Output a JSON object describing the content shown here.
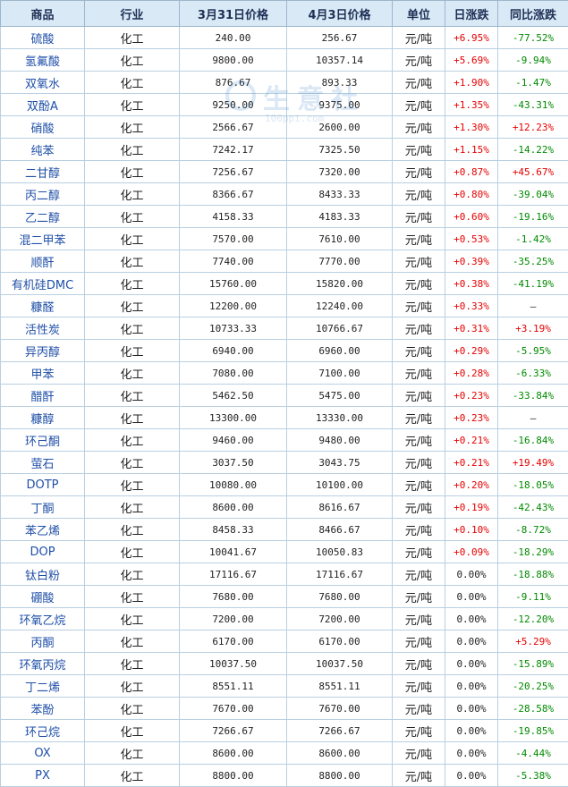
{
  "headers": [
    "商品",
    "行业",
    "3月31日价格",
    "4月3日价格",
    "单位",
    "日涨跌",
    "同比涨跌"
  ],
  "watermark": {
    "text": "生意社",
    "url": "100ppi.com"
  },
  "rows": [
    {
      "name": "硫酸",
      "industry": "化工",
      "p1": "240.00",
      "p2": "256.67",
      "unit": "元/吨",
      "day": "+6.95%",
      "day_dir": "up",
      "yoy": "-77.52%",
      "yoy_dir": "down"
    },
    {
      "name": "氢氟酸",
      "industry": "化工",
      "p1": "9800.00",
      "p2": "10357.14",
      "unit": "元/吨",
      "day": "+5.69%",
      "day_dir": "up",
      "yoy": "-9.94%",
      "yoy_dir": "down"
    },
    {
      "name": "双氧水",
      "industry": "化工",
      "p1": "876.67",
      "p2": "893.33",
      "unit": "元/吨",
      "day": "+1.90%",
      "day_dir": "up",
      "yoy": "-1.47%",
      "yoy_dir": "down"
    },
    {
      "name": "双酚A",
      "industry": "化工",
      "p1": "9250.00",
      "p2": "9375.00",
      "unit": "元/吨",
      "day": "+1.35%",
      "day_dir": "up",
      "yoy": "-43.31%",
      "yoy_dir": "down"
    },
    {
      "name": "硝酸",
      "industry": "化工",
      "p1": "2566.67",
      "p2": "2600.00",
      "unit": "元/吨",
      "day": "+1.30%",
      "day_dir": "up",
      "yoy": "+12.23%",
      "yoy_dir": "up"
    },
    {
      "name": "纯苯",
      "industry": "化工",
      "p1": "7242.17",
      "p2": "7325.50",
      "unit": "元/吨",
      "day": "+1.15%",
      "day_dir": "up",
      "yoy": "-14.22%",
      "yoy_dir": "down"
    },
    {
      "name": "二甘醇",
      "industry": "化工",
      "p1": "7256.67",
      "p2": "7320.00",
      "unit": "元/吨",
      "day": "+0.87%",
      "day_dir": "up",
      "yoy": "+45.67%",
      "yoy_dir": "up"
    },
    {
      "name": "丙二醇",
      "industry": "化工",
      "p1": "8366.67",
      "p2": "8433.33",
      "unit": "元/吨",
      "day": "+0.80%",
      "day_dir": "up",
      "yoy": "-39.04%",
      "yoy_dir": "down"
    },
    {
      "name": "乙二醇",
      "industry": "化工",
      "p1": "4158.33",
      "p2": "4183.33",
      "unit": "元/吨",
      "day": "+0.60%",
      "day_dir": "up",
      "yoy": "-19.16%",
      "yoy_dir": "down"
    },
    {
      "name": "混二甲苯",
      "industry": "化工",
      "p1": "7570.00",
      "p2": "7610.00",
      "unit": "元/吨",
      "day": "+0.53%",
      "day_dir": "up",
      "yoy": "-1.42%",
      "yoy_dir": "down"
    },
    {
      "name": "顺酐",
      "industry": "化工",
      "p1": "7740.00",
      "p2": "7770.00",
      "unit": "元/吨",
      "day": "+0.39%",
      "day_dir": "up",
      "yoy": "-35.25%",
      "yoy_dir": "down"
    },
    {
      "name": "有机硅DMC",
      "industry": "化工",
      "p1": "15760.00",
      "p2": "15820.00",
      "unit": "元/吨",
      "day": "+0.38%",
      "day_dir": "up",
      "yoy": "-41.19%",
      "yoy_dir": "down"
    },
    {
      "name": "糠醛",
      "industry": "化工",
      "p1": "12200.00",
      "p2": "12240.00",
      "unit": "元/吨",
      "day": "+0.33%",
      "day_dir": "up",
      "yoy": "—",
      "yoy_dir": "flat"
    },
    {
      "name": "活性炭",
      "industry": "化工",
      "p1": "10733.33",
      "p2": "10766.67",
      "unit": "元/吨",
      "day": "+0.31%",
      "day_dir": "up",
      "yoy": "+3.19%",
      "yoy_dir": "up"
    },
    {
      "name": "异丙醇",
      "industry": "化工",
      "p1": "6940.00",
      "p2": "6960.00",
      "unit": "元/吨",
      "day": "+0.29%",
      "day_dir": "up",
      "yoy": "-5.95%",
      "yoy_dir": "down"
    },
    {
      "name": "甲苯",
      "industry": "化工",
      "p1": "7080.00",
      "p2": "7100.00",
      "unit": "元/吨",
      "day": "+0.28%",
      "day_dir": "up",
      "yoy": "-6.33%",
      "yoy_dir": "down"
    },
    {
      "name": "醋酐",
      "industry": "化工",
      "p1": "5462.50",
      "p2": "5475.00",
      "unit": "元/吨",
      "day": "+0.23%",
      "day_dir": "up",
      "yoy": "-33.84%",
      "yoy_dir": "down"
    },
    {
      "name": "糠醇",
      "industry": "化工",
      "p1": "13300.00",
      "p2": "13330.00",
      "unit": "元/吨",
      "day": "+0.23%",
      "day_dir": "up",
      "yoy": "—",
      "yoy_dir": "flat"
    },
    {
      "name": "环己酮",
      "industry": "化工",
      "p1": "9460.00",
      "p2": "9480.00",
      "unit": "元/吨",
      "day": "+0.21%",
      "day_dir": "up",
      "yoy": "-16.84%",
      "yoy_dir": "down"
    },
    {
      "name": "萤石",
      "industry": "化工",
      "p1": "3037.50",
      "p2": "3043.75",
      "unit": "元/吨",
      "day": "+0.21%",
      "day_dir": "up",
      "yoy": "+19.49%",
      "yoy_dir": "up"
    },
    {
      "name": "DOTP",
      "industry": "化工",
      "p1": "10080.00",
      "p2": "10100.00",
      "unit": "元/吨",
      "day": "+0.20%",
      "day_dir": "up",
      "yoy": "-18.05%",
      "yoy_dir": "down"
    },
    {
      "name": "丁酮",
      "industry": "化工",
      "p1": "8600.00",
      "p2": "8616.67",
      "unit": "元/吨",
      "day": "+0.19%",
      "day_dir": "up",
      "yoy": "-42.43%",
      "yoy_dir": "down"
    },
    {
      "name": "苯乙烯",
      "industry": "化工",
      "p1": "8458.33",
      "p2": "8466.67",
      "unit": "元/吨",
      "day": "+0.10%",
      "day_dir": "up",
      "yoy": "-8.72%",
      "yoy_dir": "down"
    },
    {
      "name": "DOP",
      "industry": "化工",
      "p1": "10041.67",
      "p2": "10050.83",
      "unit": "元/吨",
      "day": "+0.09%",
      "day_dir": "up",
      "yoy": "-18.29%",
      "yoy_dir": "down"
    },
    {
      "name": "钛白粉",
      "industry": "化工",
      "p1": "17116.67",
      "p2": "17116.67",
      "unit": "元/吨",
      "day": "0.00%",
      "day_dir": "flat",
      "yoy": "-18.88%",
      "yoy_dir": "down"
    },
    {
      "name": "硼酸",
      "industry": "化工",
      "p1": "7680.00",
      "p2": "7680.00",
      "unit": "元/吨",
      "day": "0.00%",
      "day_dir": "flat",
      "yoy": "-9.11%",
      "yoy_dir": "down"
    },
    {
      "name": "环氧乙烷",
      "industry": "化工",
      "p1": "7200.00",
      "p2": "7200.00",
      "unit": "元/吨",
      "day": "0.00%",
      "day_dir": "flat",
      "yoy": "-12.20%",
      "yoy_dir": "down"
    },
    {
      "name": "丙酮",
      "industry": "化工",
      "p1": "6170.00",
      "p2": "6170.00",
      "unit": "元/吨",
      "day": "0.00%",
      "day_dir": "flat",
      "yoy": "+5.29%",
      "yoy_dir": "up"
    },
    {
      "name": "环氧丙烷",
      "industry": "化工",
      "p1": "10037.50",
      "p2": "10037.50",
      "unit": "元/吨",
      "day": "0.00%",
      "day_dir": "flat",
      "yoy": "-15.89%",
      "yoy_dir": "down"
    },
    {
      "name": "丁二烯",
      "industry": "化工",
      "p1": "8551.11",
      "p2": "8551.11",
      "unit": "元/吨",
      "day": "0.00%",
      "day_dir": "flat",
      "yoy": "-20.25%",
      "yoy_dir": "down"
    },
    {
      "name": "苯酚",
      "industry": "化工",
      "p1": "7670.00",
      "p2": "7670.00",
      "unit": "元/吨",
      "day": "0.00%",
      "day_dir": "flat",
      "yoy": "-28.58%",
      "yoy_dir": "down"
    },
    {
      "name": "环己烷",
      "industry": "化工",
      "p1": "7266.67",
      "p2": "7266.67",
      "unit": "元/吨",
      "day": "0.00%",
      "day_dir": "flat",
      "yoy": "-19.85%",
      "yoy_dir": "down"
    },
    {
      "name": "OX",
      "industry": "化工",
      "p1": "8600.00",
      "p2": "8600.00",
      "unit": "元/吨",
      "day": "0.00%",
      "day_dir": "flat",
      "yoy": "-4.44%",
      "yoy_dir": "down"
    },
    {
      "name": "PX",
      "industry": "化工",
      "p1": "8800.00",
      "p2": "8800.00",
      "unit": "元/吨",
      "day": "0.00%",
      "day_dir": "flat",
      "yoy": "-5.38%",
      "yoy_dir": "down"
    }
  ]
}
